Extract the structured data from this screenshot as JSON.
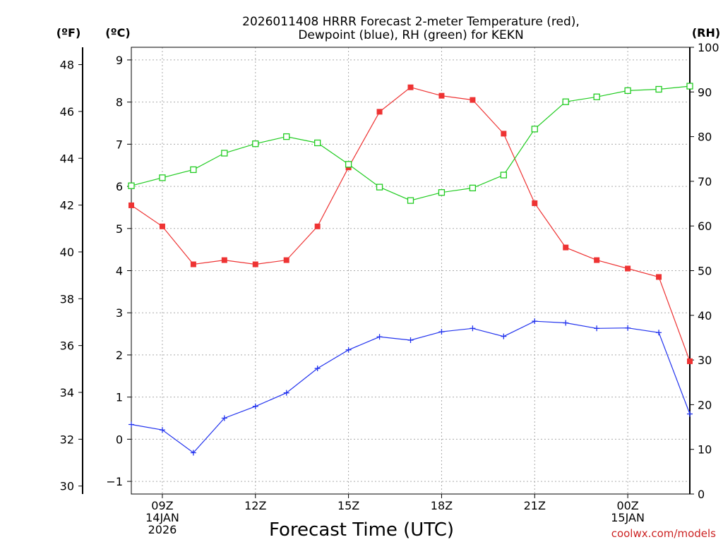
{
  "chart_data": {
    "type": "line",
    "title_line1": "2026011408 HRRR Forecast 2-meter Temperature (red),",
    "title_line2": "Dewpoint (blue), RH (green) for KEKN",
    "xlabel": "Forecast Time (UTC)",
    "credit": "coolwx.com/models",
    "units": {
      "fahrenheit": "(ºF)",
      "celsius": "(ºC)",
      "rh": "(RH)"
    },
    "x_hours": [
      0,
      1,
      2,
      3,
      4,
      5,
      6,
      7,
      8,
      9,
      10,
      11,
      12,
      13,
      14,
      15,
      16,
      17,
      18
    ],
    "xlim": [
      0,
      18
    ],
    "x_ticks": [
      {
        "hour": 1,
        "lines": [
          "09Z",
          "14JAN",
          "2026"
        ]
      },
      {
        "hour": 4,
        "lines": [
          "12Z"
        ]
      },
      {
        "hour": 7,
        "lines": [
          "15Z"
        ]
      },
      {
        "hour": 10,
        "lines": [
          "18Z"
        ]
      },
      {
        "hour": 13,
        "lines": [
          "21Z"
        ]
      },
      {
        "hour": 16,
        "lines": [
          "00Z",
          "15JAN"
        ]
      }
    ],
    "celsius_axis": {
      "ylim": [
        -1.3,
        9.3
      ],
      "ticks": [
        -1,
        0,
        1,
        2,
        3,
        4,
        5,
        6,
        7,
        8,
        9
      ]
    },
    "fahrenheit_ticks": [
      30,
      32,
      34,
      36,
      38,
      40,
      42,
      44,
      46,
      48
    ],
    "rh_axis": {
      "ylim": [
        0,
        100
      ],
      "ticks": [
        0,
        10,
        20,
        30,
        40,
        50,
        60,
        70,
        80,
        90,
        100
      ]
    },
    "series": [
      {
        "name": "Temperature",
        "axis": "celsius",
        "color": "#ee3333",
        "marker": "filled-square",
        "values": [
          5.55,
          5.05,
          4.15,
          4.25,
          4.15,
          4.25,
          5.05,
          6.45,
          7.77,
          8.35,
          8.15,
          8.05,
          7.25,
          5.6,
          4.55,
          4.25,
          4.05,
          3.85,
          1.85
        ]
      },
      {
        "name": "Dewpoint",
        "axis": "celsius",
        "color": "#2233ee",
        "marker": "plus",
        "values": [
          0.35,
          0.22,
          -0.32,
          0.5,
          0.78,
          1.1,
          1.68,
          2.12,
          2.43,
          2.35,
          2.55,
          2.63,
          2.44,
          2.8,
          2.76,
          2.63,
          2.64,
          2.53,
          0.6
        ]
      },
      {
        "name": "RH",
        "axis": "rh",
        "color": "#22cc22",
        "marker": "open-square",
        "values": [
          69,
          70.8,
          72.6,
          76.3,
          78.4,
          80,
          78.6,
          73.8,
          68.7,
          65.7,
          67.5,
          68.5,
          71.4,
          81.7,
          87.8,
          88.9,
          90.3,
          90.6,
          91.3
        ]
      }
    ]
  }
}
